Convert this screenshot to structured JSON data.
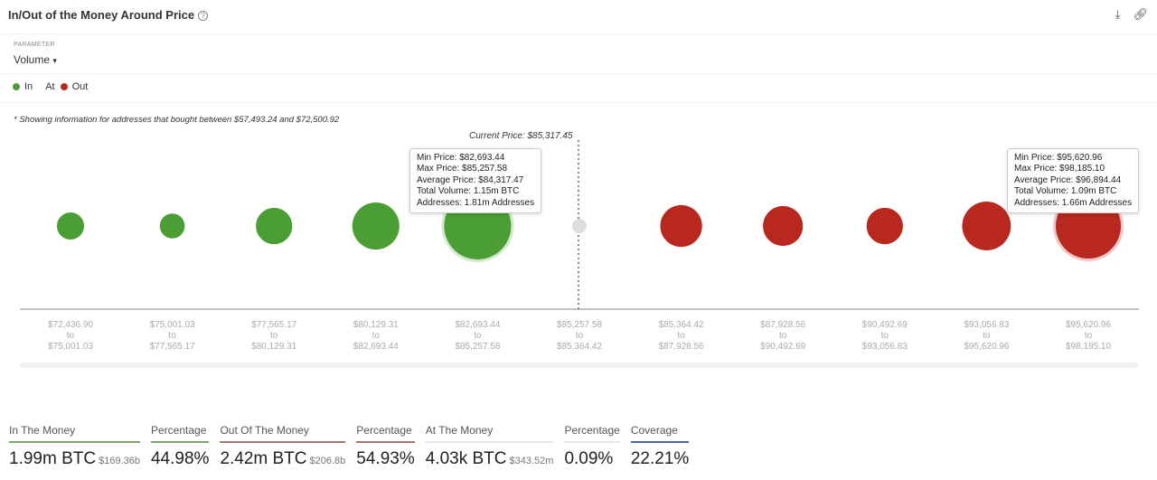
{
  "header": {
    "title": "In/Out of the Money Around Price",
    "help_icon": "?",
    "download_icon": "download-icon",
    "link_icon": "link-icon"
  },
  "parameter": {
    "label": "PARAMETER",
    "value": "Volume"
  },
  "legend": [
    {
      "label": "In",
      "color": "#4a9e34"
    },
    {
      "label": "At",
      "color": ""
    },
    {
      "label": "Out",
      "color": "#b8281f"
    }
  ],
  "note": "* Showing information for addresses that bought between $57,493.24 and $72,500.92",
  "current_price": "Current Price: $85,317.45",
  "chart_data": {
    "type": "scatter",
    "categories": [
      {
        "from": "$72,436.90",
        "to": "$75,001.03",
        "status": "in",
        "volume_approx": 0.19
      },
      {
        "from": "$75,001.03",
        "to": "$77,565.17",
        "status": "in",
        "volume_approx": 0.16
      },
      {
        "from": "$77,565.17",
        "to": "$80,129.31",
        "status": "in",
        "volume_approx": 0.34
      },
      {
        "from": "$80,129.31",
        "to": "$82,693.44",
        "status": "in",
        "volume_approx": 0.57
      },
      {
        "from": "$82,693.44",
        "to": "$85,257.58",
        "status": "in",
        "volume_approx": 1.15
      },
      {
        "from": "$85,257.58",
        "to": "$85,364.42",
        "status": "at",
        "volume_approx": 0.004
      },
      {
        "from": "$85,364.42",
        "to": "$87,928.56",
        "status": "out",
        "volume_approx": 0.45
      },
      {
        "from": "$87,928.56",
        "to": "$90,492.69",
        "status": "out",
        "volume_approx": 0.41
      },
      {
        "from": "$90,492.69",
        "to": "$93,056.83",
        "status": "out",
        "volume_approx": 0.34
      },
      {
        "from": "$93,056.83",
        "to": "$95,620.96",
        "status": "out",
        "volume_approx": 0.61
      },
      {
        "from": "$95,620.96",
        "to": "$98,185.10",
        "status": "out",
        "volume_approx": 1.09
      }
    ],
    "range_word": "to",
    "colors": {
      "in": "#4a9e34",
      "out": "#b8281f",
      "at": "#dddddd"
    }
  },
  "tooltips": [
    {
      "lines": [
        "Min Price: $82,693.44",
        "Max Price: $85,257.58",
        "Average Price: $84,317.47",
        "Total Volume: 1.15m BTC",
        "Addresses: 1.81m Addresses"
      ]
    },
    {
      "lines": [
        "Min Price: $95,620.96",
        "Max Price: $98,185.10",
        "Average Price: $96,894.44",
        "Total Volume: 1.09m BTC",
        "Addresses: 1.66m Addresses"
      ]
    }
  ],
  "stats": [
    {
      "label": "In The Money",
      "value": "1.99m BTC",
      "sub": "$169.36b",
      "color": "#7fa86a"
    },
    {
      "label": "Percentage",
      "value": "44.98%",
      "sub": "",
      "color": "#7fa86a"
    },
    {
      "label": "Out Of The Money",
      "value": "2.42m BTC",
      "sub": "$206.8b",
      "color": "#a8776f"
    },
    {
      "label": "Percentage",
      "value": "54.93%",
      "sub": "",
      "color": "#a8776f"
    },
    {
      "label": "At The Money",
      "value": "4.03k BTC",
      "sub": "$343.52m",
      "color": "#e5e5e5"
    },
    {
      "label": "Percentage",
      "value": "0.09%",
      "sub": "",
      "color": "#e5e5e5"
    },
    {
      "label": "Coverage",
      "value": "22.21%",
      "sub": "",
      "color": "#4a64a8"
    }
  ]
}
